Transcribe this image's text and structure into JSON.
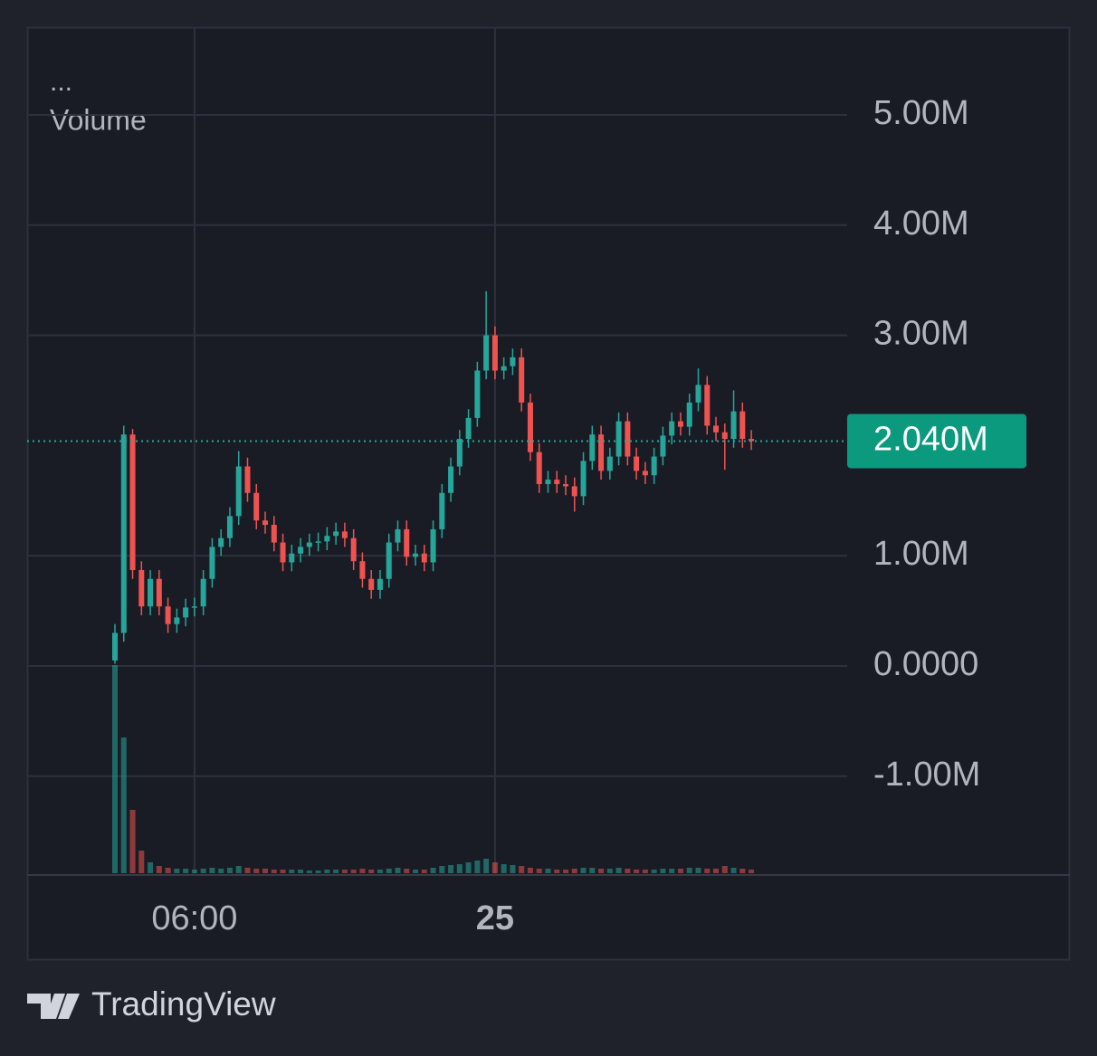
{
  "header": {
    "menu": "...",
    "title": "Volume"
  },
  "footer": {
    "brand": "TradingView"
  },
  "chart_data": {
    "type": "candlestick",
    "categories": [
      null,
      null,
      null,
      null,
      null,
      null,
      null,
      null,
      null,
      "06:00",
      null,
      null,
      null,
      null,
      null,
      null,
      null,
      null,
      null,
      null,
      null,
      null,
      null,
      null,
      null,
      null,
      null,
      null,
      null,
      null,
      null,
      null,
      null,
      null,
      null,
      null,
      null,
      null,
      null,
      null,
      null,
      null,
      null,
      "25",
      null,
      null,
      null,
      null,
      null,
      null,
      null,
      null,
      null,
      null,
      null,
      null,
      null,
      null,
      null,
      null,
      null,
      null,
      null,
      null,
      null,
      null,
      null,
      null,
      null,
      null,
      null,
      null,
      null
    ],
    "open": [
      0.05,
      0.3,
      2.1,
      0.87,
      0.54,
      0.79,
      0.54,
      0.38,
      0.44,
      0.53,
      0.54,
      0.79,
      1.08,
      1.16,
      1.36,
      1.81,
      1.57,
      1.32,
      1.28,
      1.12,
      0.94,
      1.02,
      1.08,
      1.12,
      1.13,
      1.18,
      1.22,
      1.16,
      0.95,
      0.79,
      0.69,
      0.79,
      1.12,
      1.24,
      0.99,
      1.02,
      0.94,
      1.24,
      1.57,
      1.81,
      2.06,
      2.25,
      2.68,
      3.0,
      2.68,
      2.72,
      2.8,
      2.39,
      1.94,
      1.65,
      1.69,
      1.65,
      1.63,
      1.54,
      1.86,
      2.1,
      1.77,
      1.9,
      2.22,
      1.9,
      1.77,
      1.73,
      1.9,
      2.09,
      2.22,
      2.17,
      2.39,
      2.55,
      2.18,
      2.12,
      2.06,
      2.31,
      2.06
    ],
    "high": [
      0.38,
      2.18,
      2.15,
      0.95,
      0.87,
      0.87,
      0.62,
      0.52,
      0.61,
      0.62,
      0.87,
      1.16,
      1.24,
      1.44,
      1.95,
      1.89,
      1.65,
      1.4,
      1.36,
      1.2,
      1.1,
      1.16,
      1.2,
      1.21,
      1.26,
      1.3,
      1.3,
      1.24,
      1.03,
      0.87,
      0.87,
      1.2,
      1.32,
      1.32,
      1.1,
      1.1,
      1.32,
      1.65,
      1.89,
      2.14,
      2.33,
      2.76,
      3.4,
      3.08,
      2.8,
      2.88,
      2.88,
      2.47,
      2.02,
      1.77,
      1.77,
      1.73,
      1.71,
      1.94,
      2.18,
      2.18,
      1.98,
      2.3,
      2.3,
      1.98,
      1.85,
      1.98,
      2.17,
      2.3,
      2.3,
      2.47,
      2.7,
      2.63,
      2.26,
      2.2,
      2.5,
      2.39,
      2.14
    ],
    "low": [
      0.02,
      0.22,
      0.79,
      0.46,
      0.46,
      0.46,
      0.3,
      0.3,
      0.36,
      0.45,
      0.46,
      0.71,
      1.0,
      1.08,
      1.28,
      1.49,
      1.24,
      1.2,
      1.04,
      0.86,
      0.86,
      0.94,
      1.0,
      1.04,
      1.05,
      1.1,
      1.08,
      0.87,
      0.71,
      0.61,
      0.61,
      0.71,
      1.04,
      0.91,
      0.91,
      0.86,
      0.86,
      1.16,
      1.49,
      1.73,
      1.98,
      2.17,
      2.6,
      2.6,
      2.6,
      2.64,
      2.31,
      1.86,
      1.57,
      1.57,
      1.57,
      1.55,
      1.4,
      1.46,
      1.78,
      1.69,
      1.69,
      1.82,
      1.82,
      1.69,
      1.65,
      1.65,
      1.82,
      2.01,
      2.09,
      2.09,
      2.31,
      2.1,
      2.04,
      1.78,
      1.98,
      1.98,
      1.96
    ],
    "close": [
      0.3,
      2.1,
      0.87,
      0.54,
      0.79,
      0.54,
      0.38,
      0.44,
      0.53,
      0.54,
      0.79,
      1.08,
      1.16,
      1.36,
      1.81,
      1.57,
      1.32,
      1.28,
      1.12,
      0.94,
      1.02,
      1.08,
      1.12,
      1.13,
      1.18,
      1.22,
      1.16,
      0.95,
      0.79,
      0.69,
      0.79,
      1.12,
      1.24,
      0.99,
      1.02,
      0.94,
      1.24,
      1.57,
      1.81,
      2.06,
      2.25,
      2.68,
      3.0,
      2.68,
      2.72,
      2.8,
      2.39,
      1.94,
      1.65,
      1.69,
      1.65,
      1.63,
      1.54,
      1.86,
      2.1,
      1.77,
      1.9,
      2.22,
      1.9,
      1.77,
      1.73,
      1.9,
      2.09,
      2.22,
      2.17,
      2.39,
      2.55,
      2.18,
      2.12,
      2.06,
      2.31,
      2.06,
      2.04
    ],
    "volume": [
      230,
      150,
      70,
      25,
      12,
      8,
      6,
      5,
      5,
      4,
      5,
      6,
      5,
      6,
      8,
      6,
      5,
      5,
      4,
      4,
      4,
      4,
      3,
      3,
      4,
      4,
      4,
      4,
      5,
      4,
      4,
      5,
      6,
      5,
      4,
      4,
      6,
      8,
      9,
      10,
      12,
      14,
      16,
      12,
      10,
      9,
      8,
      6,
      5,
      5,
      4,
      4,
      5,
      6,
      6,
      5,
      5,
      6,
      5,
      4,
      4,
      4,
      5,
      5,
      5,
      6,
      6,
      5,
      5,
      8,
      6,
      5,
      4
    ],
    "up_color": "#26a69a",
    "down_color": "#ef5350",
    "ylim": [
      -1.897,
      5.796
    ],
    "yticks": [
      {
        "value": 5,
        "label": "5.00M"
      },
      {
        "value": 4,
        "label": "4.00M"
      },
      {
        "value": 3,
        "label": "3.00M"
      },
      {
        "value": 1,
        "label": "1.00M"
      },
      {
        "value": 0,
        "label": "0.0000"
      },
      {
        "value": -1,
        "label": "-1.00M"
      }
    ],
    "last_price": {
      "value": 2.04,
      "label": "2.040M"
    },
    "last_price_color": "#0c9a7f",
    "grid": true
  }
}
